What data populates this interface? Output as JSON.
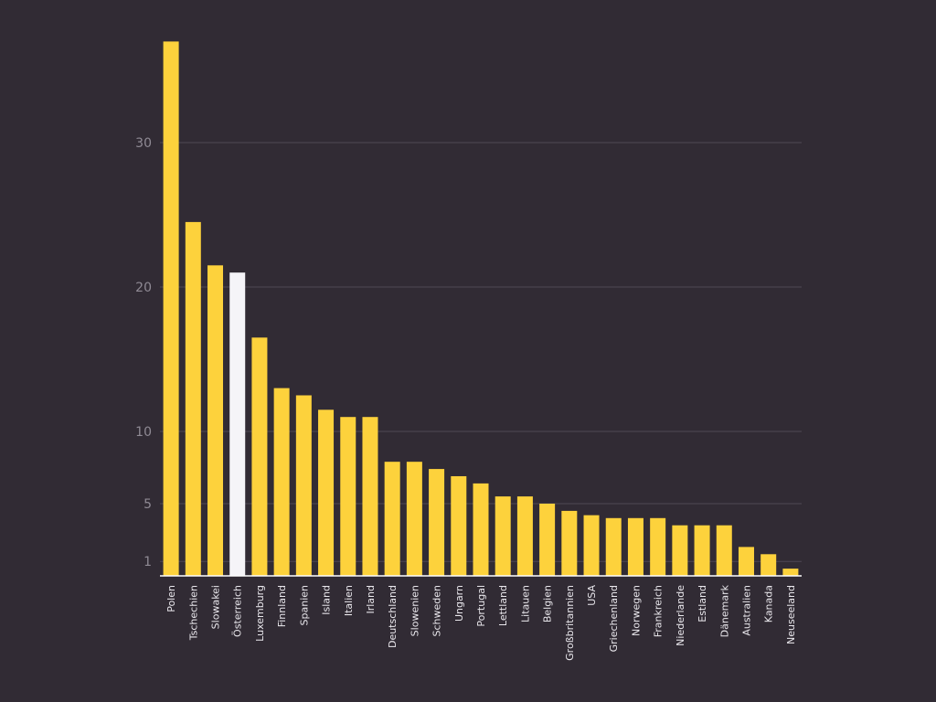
{
  "chart_data": {
    "type": "bar",
    "title": "",
    "xlabel": "",
    "ylabel": "",
    "ylim": [
      0,
      37
    ],
    "yticks": [
      1,
      5,
      10,
      20,
      30
    ],
    "grid": true,
    "categories": [
      "Polen",
      "Tschechien",
      "Slowakei",
      "Österreich",
      "Luxemburg",
      "Finnland",
      "Spanien",
      "Island",
      "Italien",
      "Irland",
      "Deutschland",
      "Slowenien",
      "Schweden",
      "Ungarn",
      "Portugal",
      "Lettland",
      "Litauen",
      "Belgien",
      "Großbritannien",
      "USA",
      "Griechenland",
      "Norwegen",
      "Frankreich",
      "Niederlande",
      "Estland",
      "Dänemark",
      "Australien",
      "Kanada",
      "Neuseeland"
    ],
    "values": [
      37.0,
      24.5,
      21.5,
      21.0,
      16.5,
      13.0,
      12.5,
      11.5,
      11.0,
      11.0,
      7.9,
      7.9,
      7.4,
      6.9,
      6.4,
      5.5,
      5.5,
      5.0,
      4.5,
      4.2,
      4.0,
      4.0,
      4.0,
      3.5,
      3.5,
      3.5,
      2.0,
      1.5,
      0.5
    ],
    "highlight_category": "Österreich",
    "colors": {
      "background": "#312b34",
      "bar": "#fdd23c",
      "highlight": "#f5f4f8",
      "grid": "#4f4855",
      "tick_text": "#8f8a94",
      "category_text": "#e9e7ec",
      "baseline": "#ffffff"
    }
  }
}
